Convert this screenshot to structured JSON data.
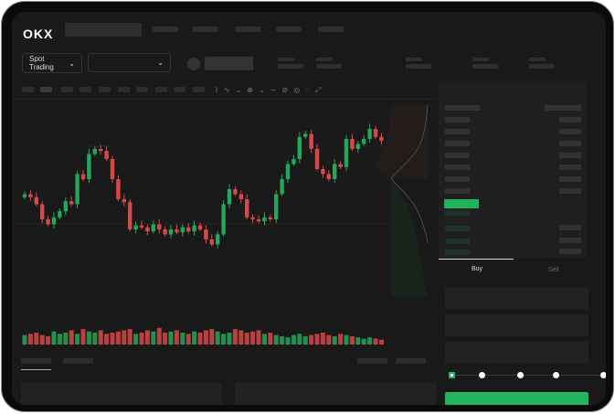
{
  "header": {
    "logo": "OKX"
  },
  "toolbar": {
    "market_type": "Spot Trading",
    "pair_select": ""
  },
  "chart": {
    "colors": {
      "up": "#25a75a",
      "down": "#d94848"
    },
    "closes": [
      55,
      52,
      45,
      30,
      25,
      32,
      38,
      48,
      45,
      75,
      70,
      95,
      100,
      98,
      90,
      70,
      50,
      47,
      20,
      24,
      22,
      18,
      25,
      20,
      15,
      20,
      17,
      22,
      18,
      24,
      20,
      10,
      5,
      15,
      45,
      60,
      55,
      50,
      32,
      30,
      28,
      32,
      30,
      55,
      70,
      85,
      90,
      112,
      115,
      100,
      80,
      75,
      70,
      85,
      82,
      110,
      100,
      105,
      110,
      120,
      112,
      108
    ],
    "volumes": [
      8,
      9,
      10,
      8,
      7,
      11,
      9,
      10,
      12,
      9,
      13,
      11,
      10,
      12,
      9,
      10,
      11,
      12,
      13,
      9,
      10,
      12,
      11,
      14,
      10,
      11,
      12,
      10,
      9,
      11,
      10,
      12,
      13,
      11,
      9,
      10,
      13,
      12,
      10,
      11,
      12,
      9,
      10,
      8,
      7,
      6,
      8,
      9,
      7,
      8,
      9,
      10,
      8,
      7,
      9,
      8,
      7,
      6,
      5,
      6,
      5,
      4
    ]
  },
  "trade": {
    "tabs": [
      "Buy",
      "Sell"
    ],
    "active_tab": "Buy",
    "leverage_steps": 5,
    "leverage_selected": 0
  },
  "colors": {
    "accent": "#22b35f",
    "background": "#191919"
  }
}
